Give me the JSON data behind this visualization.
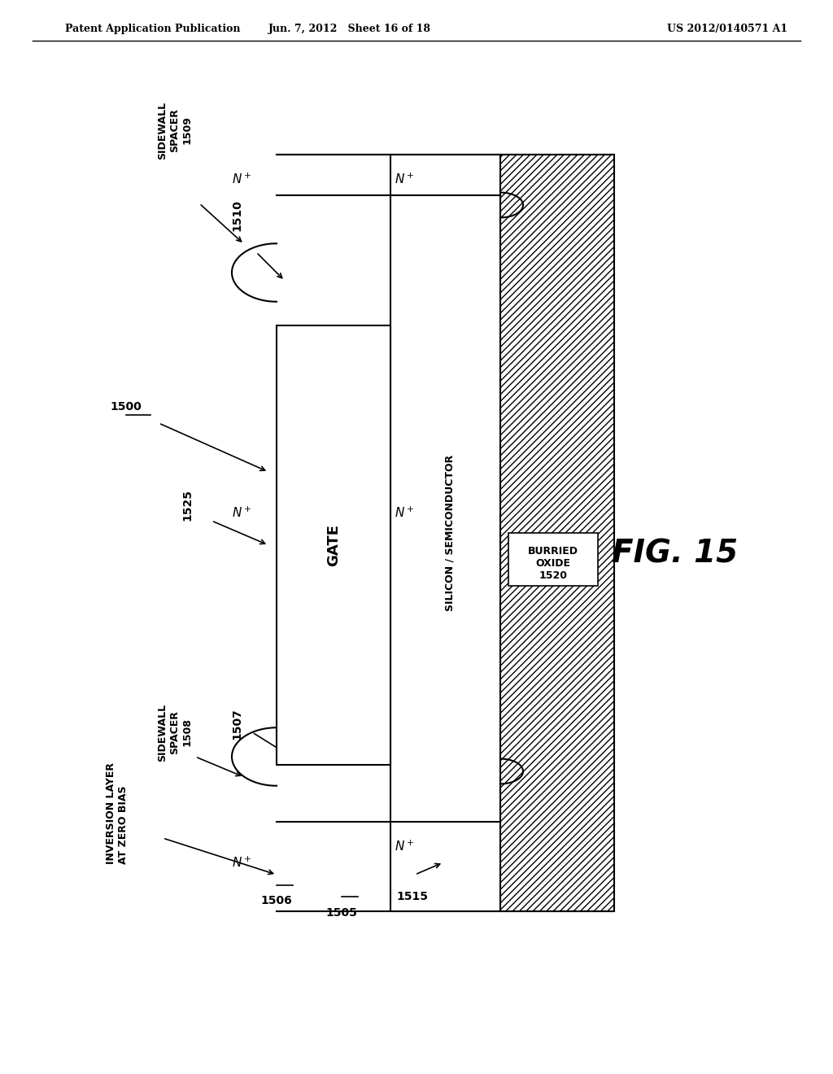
{
  "header_left": "Patent Application Publication",
  "header_center": "Jun. 7, 2012   Sheet 16 of 18",
  "header_right": "US 2012/0140571 A1",
  "fig_label": "FIG. 15",
  "background": "#ffffff",
  "figure_number": "1500",
  "labels": {
    "sidewall_spacer_top": "SIDEWALL\nSPACER\n1509",
    "sidewall_spacer_bottom": "SIDEWALL\nSPACER\n1508",
    "gate": "GATE",
    "silicon_semiconductor": "SILICON / SEMICONDUCTOR",
    "burried_oxide": "BURRIED\nOXIDE\n1520",
    "inversion_layer": "INVERSION LAYER\nAT ZERO BIAS",
    "n1509_label": "1509",
    "n1510": "1510",
    "n1515": "1515",
    "n1525": "1525",
    "n1507": "1507",
    "n1506": "1506",
    "n1505": "1505",
    "n1500": "1500"
  }
}
